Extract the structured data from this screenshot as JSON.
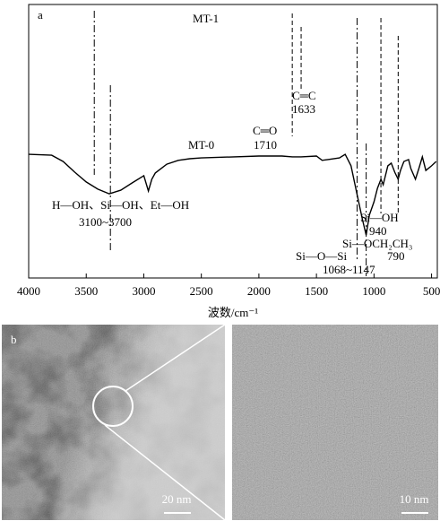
{
  "chart_data": {
    "type": "line",
    "panel_label": "a",
    "xlabel": "波数/cm⁻¹",
    "xlim": [
      4000,
      450
    ],
    "xticks": [
      4000,
      3500,
      3000,
      2500,
      2000,
      1500,
      1000,
      500
    ],
    "ylim": [
      0,
      100
    ],
    "series_labels": [
      "MT-1",
      "MT-0"
    ],
    "series": [
      {
        "name": "MT-0",
        "color": "#000000",
        "x": [
          4000,
          3800,
          3700,
          3600,
          3500,
          3400,
          3300,
          3200,
          3100,
          3000,
          2960,
          2930,
          2900,
          2800,
          2700,
          2600,
          2500,
          2000,
          1800,
          1710,
          1633,
          1500,
          1450,
          1400,
          1300,
          1250,
          1200,
          1150,
          1100,
          1068,
          1040,
          1000,
          970,
          940,
          920,
          880,
          850,
          820,
          790,
          770,
          740,
          700,
          680,
          640,
          610,
          580,
          550,
          500,
          460
        ],
        "values": [
          45.2,
          44.9,
          42.6,
          38.7,
          35.1,
          32.5,
          30.8,
          32.1,
          34.8,
          37.4,
          31.8,
          36.1,
          38.4,
          41.6,
          43.0,
          43.6,
          43.9,
          44.6,
          44.6,
          44.3,
          44.3,
          44.6,
          43.0,
          43.3,
          43.9,
          45.2,
          41.0,
          31.1,
          21.3,
          15.7,
          23.0,
          27.9,
          32.8,
          36.1,
          34.1,
          41.0,
          42.0,
          38.7,
          36.1,
          39.3,
          42.6,
          43.3,
          40.0,
          36.1,
          40.0,
          44.3,
          39.3,
          41.0,
          42.6
        ]
      }
    ],
    "markers": [
      3430,
      3290,
      1710,
      1633,
      1147,
      1068,
      940,
      790
    ],
    "annotations": [
      "C═O",
      "C═C",
      "H—OH、Si—OH、Et—OH",
      "3100~3700",
      "Si—OH",
      "Si—OCH₂CH₃",
      "Si—O—Si",
      "1068~1147"
    ]
  },
  "panel_b": {
    "label": "b",
    "scale_bars": [
      "20 nm",
      "10 nm"
    ]
  }
}
